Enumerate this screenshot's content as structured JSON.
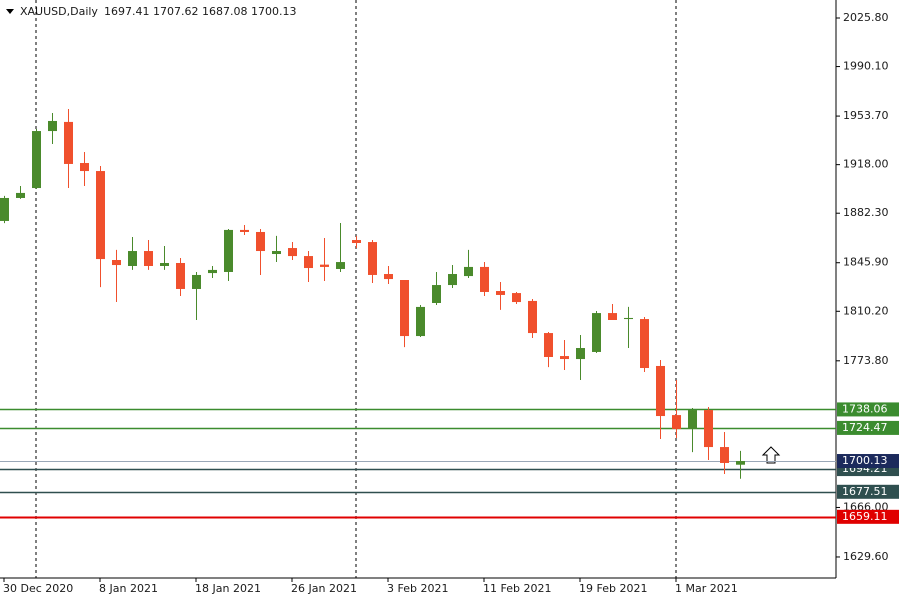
{
  "chart_data": {
    "type": "candlestick",
    "title": "XAUUSD,Daily",
    "categories": [
      "30 Dec 2020",
      null,
      null,
      null,
      null,
      null,
      "8 Jan 2021",
      null,
      null,
      null,
      null,
      null,
      "18 Jan 2021",
      null,
      null,
      null,
      null,
      null,
      "26 Jan 2021",
      null,
      null,
      null,
      null,
      null,
      "3 Feb 2021",
      null,
      null,
      null,
      null,
      null,
      "11 Feb 2021",
      null,
      null,
      null,
      null,
      null,
      "19 Feb 2021",
      null,
      null,
      null,
      null,
      null,
      "1 Mar 2021",
      null,
      null,
      null,
      null
    ],
    "open": [
      1876.6,
      1893.5,
      1900.8,
      1942.7,
      1949.4,
      1919.2,
      1913.3,
      1847.9,
      1843.5,
      1854.5,
      1843.5,
      1845.7,
      1826.6,
      1838.3,
      1839.1,
      1870.0,
      1868.5,
      1852.3,
      1856.7,
      1850.8,
      1844.5,
      1841.3,
      1862.6,
      1861.1,
      1837.6,
      1833.2,
      1792.0,
      1816.3,
      1829.5,
      1836.1,
      1842.8,
      1825.1,
      1823.6,
      1817.8,
      1794.2,
      1777.3,
      1775.1,
      1780.3,
      1808.9,
      1804.5,
      1804.5,
      1770.0,
      1733.9,
      1723.7,
      1737.6,
      1710.4,
      1697.41
    ],
    "high": [
      1895.0,
      1902.3,
      1944.2,
      1956.0,
      1958.9,
      1927.3,
      1917.0,
      1855.3,
      1864.8,
      1862.6,
      1858.2,
      1849.4,
      1839.1,
      1843.5,
      1870.7,
      1873.6,
      1870.7,
      1865.6,
      1861.1,
      1854.5,
      1864.1,
      1875.1,
      1865.6,
      1862.6,
      1843.5,
      1833.2,
      1814.8,
      1839.1,
      1844.2,
      1855.3,
      1846.4,
      1831.7,
      1824.4,
      1819.2,
      1795.0,
      1789.1,
      1792.8,
      1810.4,
      1815.6,
      1813.4,
      1806.0,
      1774.4,
      1759.7,
      1739.1,
      1739.8,
      1721.5,
      1707.62
    ],
    "low": [
      1875.0,
      1892.8,
      1900.1,
      1933.2,
      1900.8,
      1902.3,
      1828.0,
      1817.0,
      1840.6,
      1840.6,
      1840.6,
      1821.4,
      1803.8,
      1834.7,
      1832.5,
      1866.3,
      1836.9,
      1846.4,
      1847.9,
      1831.7,
      1832.5,
      1839.1,
      1856.7,
      1831.0,
      1830.3,
      1783.9,
      1791.3,
      1814.8,
      1827.3,
      1834.7,
      1821.4,
      1811.2,
      1815.6,
      1790.6,
      1769.2,
      1767.0,
      1759.7,
      1779.5,
      1803.8,
      1783.2,
      1765.6,
      1716.3,
      1717.1,
      1706.7,
      1700.9,
      1690.6,
      1687.08
    ],
    "close": [
      1893.5,
      1897.2,
      1942.7,
      1950.1,
      1918.5,
      1913.3,
      1848.6,
      1844.2,
      1854.5,
      1843.5,
      1845.7,
      1826.6,
      1836.9,
      1840.6,
      1870.0,
      1868.5,
      1854.5,
      1854.5,
      1850.8,
      1842.0,
      1842.8,
      1846.4,
      1860.4,
      1836.9,
      1833.9,
      1792.0,
      1813.4,
      1829.5,
      1837.6,
      1842.8,
      1824.4,
      1822.2,
      1817.0,
      1794.2,
      1776.6,
      1775.1,
      1783.2,
      1808.9,
      1803.8,
      1805.3,
      1768.5,
      1733.2,
      1723.7,
      1737.6,
      1710.4,
      1698.7,
      1700.13
    ],
    "up_color": "#4a8a2c",
    "down_color": "#f0502d",
    "ylim": [
      1614.14,
      2039.03
    ],
    "yticks": [
      {
        "value": 2025.8,
        "label": "2025.80"
      },
      {
        "value": 1990.1,
        "label": "1990.10"
      },
      {
        "value": 1953.7,
        "label": "1953.70"
      },
      {
        "value": 1918.0,
        "label": "1918.00"
      },
      {
        "value": 1882.3,
        "label": "1882.30"
      },
      {
        "value": 1845.9,
        "label": "1845.90"
      },
      {
        "value": 1810.2,
        "label": "1810.20"
      },
      {
        "value": 1773.8,
        "label": "1773.80"
      },
      {
        "value": 1666.0,
        "label": "1666.00"
      },
      {
        "value": 1629.6,
        "label": "1629.60"
      }
    ],
    "levels": [
      {
        "value": 1738.06,
        "color": "#3b8c2f"
      },
      {
        "value": 1724.47,
        "color": "#3b8c2f"
      },
      {
        "value": 1694.21,
        "color": "#2f4f4f"
      },
      {
        "value": 1677.51,
        "color": "#2f4f4f"
      },
      {
        "value": 1659.11,
        "color": "#e00000"
      }
    ],
    "bid_color": "#1c2a5c",
    "grid": false
  }
}
